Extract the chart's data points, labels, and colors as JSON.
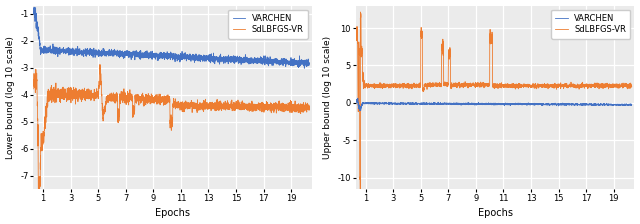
{
  "color_varchen": "#4472C4",
  "color_sdlbfgs": "#ED7D31",
  "ylabel_left": "Lower bound (log 10 scale)",
  "ylabel_right": "Upper bound (log 10 scale)",
  "xlabel": "Epochs",
  "legend_labels": [
    "VARCHEN",
    "SdLBFGS-VR"
  ],
  "ylim_left": [
    -7.5,
    -0.7
  ],
  "ylim_right": [
    -11.5,
    13
  ],
  "yticks_left": [
    -7,
    -6,
    -5,
    -4,
    -3,
    -2,
    -1
  ],
  "yticks_right": [
    -10,
    -5,
    0,
    5,
    10
  ],
  "xticks": [
    1,
    3,
    5,
    7,
    9,
    11,
    13,
    15,
    17,
    19
  ],
  "xlim": [
    0.3,
    20.5
  ],
  "n_points": 3000,
  "seed": 42,
  "background_color": "#ebebeb",
  "grid_color": "white"
}
